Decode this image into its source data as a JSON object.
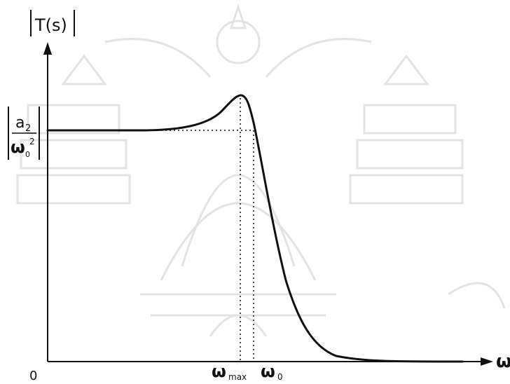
{
  "figure": {
    "y_axis_label": "T(s)",
    "x_axis_label": "ω",
    "origin_label": "0",
    "dc_gain_numerator": "a",
    "dc_gain_numerator_sub": "2",
    "dc_gain_denominator": "ω",
    "dc_gain_denominator_sub": "0",
    "dc_gain_denominator_sup": "2",
    "omega_max_symbol": "ω",
    "omega_max_sub": "max",
    "omega_0_symbol": "ω",
    "omega_0_sub": "0"
  },
  "colors": {
    "curve": "#111111",
    "axis": "#111111",
    "watermark": "#e3e3e3"
  }
}
